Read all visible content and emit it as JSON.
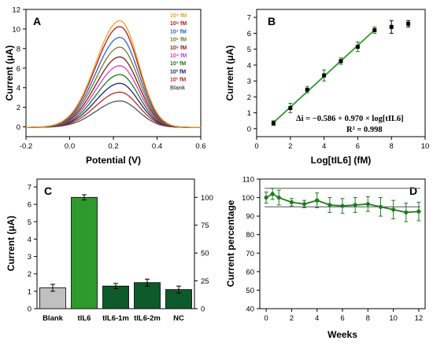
{
  "chart_data": [
    {
      "panel": "A",
      "type": "line",
      "xlabel": "Potential (V)",
      "ylabel": "Current (μA)",
      "xlim": [
        -0.2,
        0.6
      ],
      "ylim": [
        -1,
        12
      ],
      "xticks": [
        "-0.2",
        "0.0",
        "0.2",
        "0.4",
        "0.6"
      ],
      "yticks": [
        "0",
        "2",
        "4",
        "6",
        "8",
        "10",
        "12"
      ],
      "series": [
        {
          "name": "Blank",
          "peak": 2.7,
          "color": "#555555"
        },
        {
          "name": "10¹ fM",
          "peak": 3.6,
          "color": "#cc2222"
        },
        {
          "name": "10² fM",
          "peak": 4.5,
          "color": "#1a237e"
        },
        {
          "name": "10³ fM",
          "peak": 5.4,
          "color": "#1e7b1e"
        },
        {
          "name": "10⁴ fM",
          "peak": 6.3,
          "color": "#cc44cc"
        },
        {
          "name": "10⁵ fM",
          "peak": 7.2,
          "color": "#8b1a1a"
        },
        {
          "name": "10⁶ fM",
          "peak": 8.2,
          "color": "#708020"
        },
        {
          "name": "10⁷ fM",
          "peak": 9.2,
          "color": "#3060d0"
        },
        {
          "name": "10⁸ fM",
          "peak": 10.3,
          "color": "#b71c1c"
        },
        {
          "name": "10⁹ fM",
          "peak": 10.9,
          "color": "#f0a020"
        }
      ],
      "peak_potential": 0.23
    },
    {
      "panel": "B",
      "type": "scatter",
      "xlabel": "Log[tIL6] (fM)",
      "ylabel": "Current (μA)",
      "xlim": [
        0,
        10
      ],
      "ylim": [
        -0.5,
        7.5
      ],
      "xticks": [
        "0",
        "2",
        "4",
        "6",
        "8",
        "10"
      ],
      "yticks": [
        "0",
        "1",
        "2",
        "3",
        "4",
        "5",
        "6",
        "7"
      ],
      "points": [
        {
          "x": 1,
          "y": 0.35,
          "err": 0.15,
          "color": "#1e7b1e"
        },
        {
          "x": 2,
          "y": 1.3,
          "err": 0.3,
          "color": "#1e7b1e"
        },
        {
          "x": 3,
          "y": 2.45,
          "err": 0.2,
          "color": "#1e7b1e"
        },
        {
          "x": 4,
          "y": 3.35,
          "err": 0.35,
          "color": "#1e7b1e"
        },
        {
          "x": 5,
          "y": 4.25,
          "err": 0.2,
          "color": "#1e7b1e"
        },
        {
          "x": 6,
          "y": 5.15,
          "err": 0.3,
          "color": "#1e7b1e"
        },
        {
          "x": 7,
          "y": 6.2,
          "err": 0.2,
          "color": "#1e7b1e"
        },
        {
          "x": 8,
          "y": 6.4,
          "err": 0.4,
          "color": "#000000"
        },
        {
          "x": 9,
          "y": 6.6,
          "err": 0.2,
          "color": "#000000"
        }
      ],
      "fit": {
        "slope": 0.97,
        "intercept": -0.586,
        "x_range": [
          1,
          7
        ]
      },
      "equation": "Δi = −0.586 + 0.970 × log[tIL6]",
      "r2": "R² = 0.998"
    },
    {
      "panel": "C",
      "type": "bar",
      "ylabel": "Current (μA)",
      "categories": [
        "Blank",
        "tIL6",
        "tIL6-1m",
        "tIL6-2m",
        "NC"
      ],
      "values": [
        1.2,
        6.4,
        1.3,
        1.5,
        1.1
      ],
      "errors": [
        0.2,
        0.15,
        0.15,
        0.2,
        0.2
      ],
      "colors": [
        "#c0c0c0",
        "#2e9a2e",
        "#0e5a2a",
        "#0e5a2a",
        "#0e5a2a"
      ],
      "ylim": [
        0,
        7
      ],
      "yticks": [
        "0",
        "1",
        "2",
        "3",
        "4",
        "5",
        "6",
        "7"
      ],
      "y2lim": [
        0,
        109.4
      ],
      "y2ticks": [
        "0",
        "25",
        "50",
        "75",
        "100"
      ]
    },
    {
      "panel": "D",
      "type": "line",
      "xlabel": "Weeks",
      "ylabel": "Current percentage",
      "xlim": [
        -0.5,
        12.5
      ],
      "ylim": [
        40,
        110
      ],
      "xticks": [
        "0",
        "2",
        "4",
        "6",
        "8",
        "10",
        "12"
      ],
      "yticks": [
        "40",
        "50",
        "60",
        "70",
        "80",
        "90",
        "100",
        "110"
      ],
      "x": [
        0,
        0.5,
        1,
        2,
        3,
        4,
        5,
        6,
        7,
        8,
        9,
        10,
        11,
        12
      ],
      "values": [
        100,
        102,
        100,
        97.5,
        96.5,
        98.5,
        96,
        95.5,
        96,
        96.5,
        95,
        93.5,
        92,
        92.5
      ],
      "errors": [
        3,
        3,
        4,
        2,
        2,
        4,
        4,
        4,
        4,
        4,
        5,
        5,
        5,
        5
      ],
      "hlines": [
        105,
        95
      ],
      "color": "#1e7b1e"
    }
  ]
}
